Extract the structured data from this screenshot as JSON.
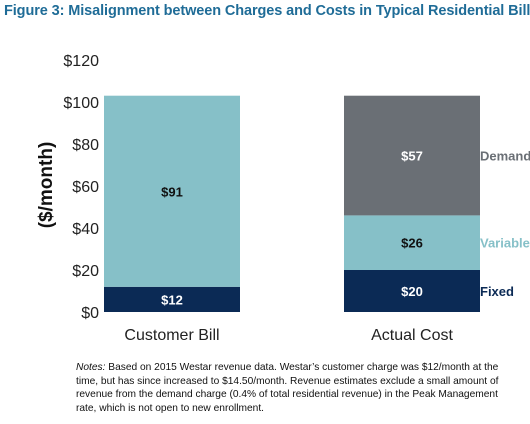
{
  "figure_title": "Figure 3: Misalignment between Charges and Costs in Typical Residential Bill",
  "notes": {
    "label": "Notes:",
    "text": " Based on 2015 Westar revenue data. Westar’s customer charge was $12/month at the time, but has since increased to $14.50/month. Revenue estimates exclude a small amount of revenue from the demand charge (0.4% of total residential revenue) in the Peak Management rate, which is not open to new enrollment."
  },
  "colors": {
    "title": "#1f6c97",
    "fixed": "#0b2a55",
    "variable": "#86c0c8",
    "demand": "#6a6f75"
  },
  "chart_data": {
    "type": "bar",
    "stacked": true,
    "title": "",
    "xlabel": "",
    "ylabel": "($/month)",
    "ylim": [
      0,
      120
    ],
    "yticks": [
      0,
      20,
      40,
      60,
      80,
      100,
      120
    ],
    "ytick_labels": [
      "$0",
      "$20",
      "$40",
      "$60",
      "$80",
      "$100",
      "$120"
    ],
    "categories": [
      "Customer Bill",
      "Actual Cost"
    ],
    "grid": false,
    "legend": "labels beside Actual Cost bar",
    "series": [
      {
        "name": "Fixed",
        "values": [
          12,
          20
        ],
        "labels": [
          "$12",
          "$20"
        ],
        "color": "#0b2a55"
      },
      {
        "name": "Variable",
        "values": [
          91,
          26
        ],
        "labels": [
          "$91",
          "$26"
        ],
        "color": "#86c0c8"
      },
      {
        "name": "Demand",
        "values": [
          0,
          57
        ],
        "labels": [
          "",
          "$57"
        ],
        "color": "#6a6f75"
      }
    ]
  }
}
